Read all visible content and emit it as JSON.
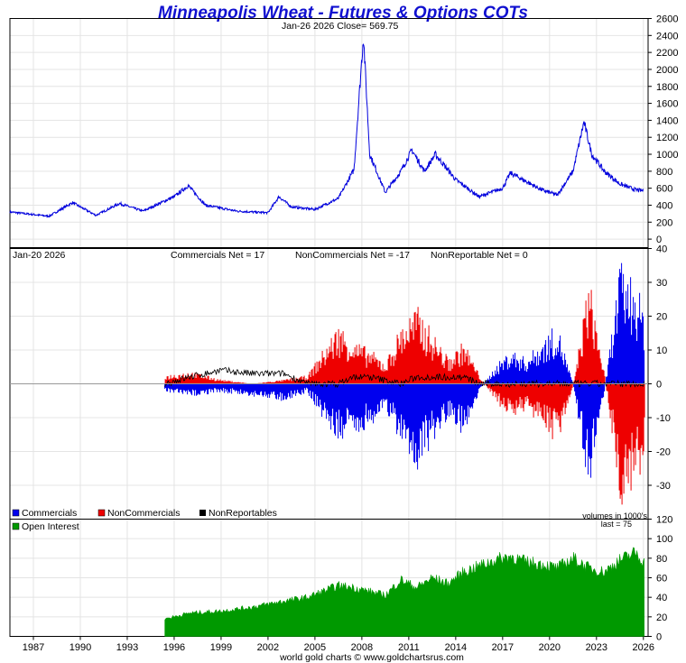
{
  "title": "Minneapolis Wheat - Futures & Options COTs",
  "footer": "world gold charts © www.goldchartsrus.com",
  "colors": {
    "title": "#1010d0",
    "price": "#0000dd",
    "commercials": "#0000ee",
    "noncommercials": "#ee0000",
    "nonreportables": "#000000",
    "open_interest": "#009900",
    "grid": "#e4e4e4"
  },
  "chart_data": [
    {
      "type": "line",
      "name": "price",
      "header": "Jan-26  2026   Close= 569.75",
      "ylim": [
        -100,
        2600
      ],
      "yticks": [
        0,
        200,
        400,
        600,
        800,
        1000,
        1200,
        1400,
        1600,
        1800,
        2000,
        2200,
        2400,
        2600
      ],
      "x": [
        1985.5,
        1988.0,
        1989.5,
        1991.0,
        1992.5,
        1994.0,
        1996.0,
        1996.9,
        1998.0,
        2000.0,
        2002.0,
        2002.7,
        2003.5,
        2005.0,
        2006.5,
        2007.5,
        2008.1,
        2008.5,
        2009.5,
        2010.5,
        2011.2,
        2012.0,
        2012.7,
        2014.0,
        2015.5,
        2017.0,
        2017.5,
        2019.5,
        2020.5,
        2021.5,
        2022.2,
        2022.7,
        2023.5,
        2024.5,
        2025.5,
        2026.0
      ],
      "values": [
        320,
        270,
        430,
        280,
        420,
        330,
        500,
        630,
        400,
        330,
        310,
        500,
        380,
        350,
        480,
        820,
        2400,
        1000,
        550,
        800,
        1050,
        800,
        1000,
        700,
        500,
        600,
        780,
        580,
        520,
        800,
        1380,
        1000,
        800,
        650,
        580,
        569.75
      ]
    },
    {
      "type": "area",
      "name": "cot_net_positions",
      "header": "Jan-20  2026",
      "annotations": [
        "Commercials Net = 17",
        "NonCommercials Net = -17",
        "NonReportable Net = 0"
      ],
      "volume_note": "volumes in 1000's",
      "ylim": [
        -40,
        40
      ],
      "yticks": [
        -30,
        -20,
        -10,
        0,
        10,
        20,
        30,
        40
      ],
      "legend": [
        "Commercials",
        "NonCommercials",
        "NonReportables"
      ],
      "x": [
        1995.4,
        1997.0,
        1999.0,
        2001.0,
        2003.0,
        2004.5,
        2005.5,
        2006.5,
        2007.5,
        2008.5,
        2009.5,
        2010.5,
        2011.5,
        2012.5,
        2013.5,
        2014.5,
        2015.5,
        2016.5,
        2017.5,
        2018.5,
        2019.5,
        2020.5,
        2021.5,
        2022.5,
        2023.5,
        2024.5,
        2025.5,
        2026.05
      ],
      "commercials": [
        -2,
        -3,
        -2,
        -3,
        -4,
        -2,
        -8,
        -14,
        -12,
        -10,
        -6,
        -14,
        -20,
        -14,
        -8,
        -12,
        -2,
        4,
        8,
        6,
        10,
        14,
        0,
        -25,
        -2,
        28,
        24,
        17
      ],
      "noncommercials": [
        2,
        3,
        1,
        0,
        1,
        2,
        8,
        14,
        10,
        8,
        5,
        14,
        18,
        12,
        6,
        10,
        2,
        -4,
        -8,
        -6,
        -10,
        -14,
        0,
        25,
        2,
        -28,
        -24,
        -17
      ],
      "nonreportables": [
        0,
        2,
        4,
        3,
        3,
        0,
        0,
        0,
        2,
        2,
        1,
        0,
        2,
        2,
        2,
        2,
        0,
        0,
        0,
        0,
        0,
        0,
        0,
        0,
        0,
        0,
        0,
        0
      ]
    },
    {
      "type": "area",
      "name": "open_interest",
      "legend": [
        "Open Interest"
      ],
      "last_note": "last = 75",
      "ylim": [
        0,
        120
      ],
      "yticks": [
        0,
        20,
        40,
        60,
        80,
        100,
        120
      ],
      "x": [
        1995.4,
        1997.0,
        1999.0,
        2001.0,
        2003.0,
        2004.5,
        2005.5,
        2006.5,
        2007.5,
        2008.5,
        2009.5,
        2010.5,
        2011.5,
        2012.5,
        2013.5,
        2014.5,
        2015.5,
        2016.5,
        2017.5,
        2018.5,
        2019.5,
        2020.5,
        2021.5,
        2022.5,
        2023.5,
        2024.5,
        2025.5,
        2026.05
      ],
      "values": [
        18,
        24,
        26,
        30,
        36,
        40,
        46,
        52,
        50,
        46,
        42,
        58,
        50,
        60,
        54,
        66,
        72,
        78,
        82,
        76,
        74,
        70,
        80,
        70,
        66,
        78,
        86,
        75
      ]
    }
  ],
  "x_axis": {
    "xlim": [
      1985.5,
      2026.3
    ],
    "ticks": [
      1987,
      1990,
      1993,
      1996,
      1999,
      2002,
      2005,
      2008,
      2011,
      2014,
      2017,
      2020,
      2023,
      2026
    ]
  }
}
